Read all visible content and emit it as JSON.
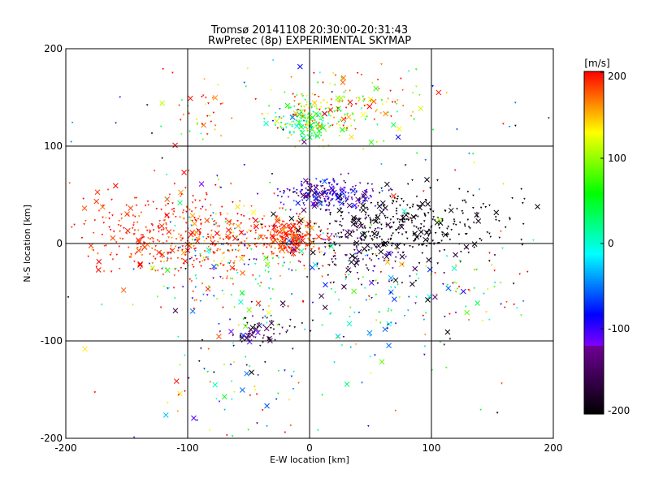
{
  "chart_data": {
    "type": "scatter",
    "title": "Tromsø 20141108 20:30:00-20:31:43",
    "subtitle": "RwPretec (8p) EXPERIMENTAL SKYMAP",
    "xlabel": "E-W location [km]",
    "ylabel": "N-S location [km]",
    "xlim": [
      -200,
      200
    ],
    "ylim": [
      -200,
      200
    ],
    "x_ticks": [
      "-200",
      "-100",
      "0",
      "100",
      "200"
    ],
    "y_ticks": [
      "200",
      "100",
      "0",
      "-100",
      "-200"
    ],
    "grid": true,
    "colorbar": {
      "label": "[m/s]",
      "range": [
        -200,
        200
      ],
      "ticks": [
        "200",
        "100",
        "0",
        "-100",
        "-200"
      ]
    },
    "clusters": [
      {
        "cx": -15,
        "cy": 5,
        "sx": 12,
        "sy": 10,
        "n": 260,
        "v": 185,
        "vs": 20
      },
      {
        "cx": -120,
        "cy": 10,
        "sx": 35,
        "sy": 22,
        "n": 300,
        "v": 190,
        "vs": 15
      },
      {
        "cx": -70,
        "cy": 0,
        "sx": 25,
        "sy": 22,
        "n": 150,
        "v": 180,
        "vs": 25
      },
      {
        "cx": 15,
        "cy": 50,
        "sx": 18,
        "sy": 8,
        "n": 240,
        "v": -110,
        "vs": 30
      },
      {
        "cx": -5,
        "cy": 125,
        "sx": 14,
        "sy": 8,
        "n": 160,
        "v": 60,
        "vs": 55
      },
      {
        "cx": 30,
        "cy": 140,
        "sx": 30,
        "sy": 16,
        "n": 160,
        "v": 140,
        "vs": 60
      },
      {
        "cx": 80,
        "cy": 18,
        "sx": 42,
        "sy": 18,
        "n": 360,
        "v": -195,
        "vs": 10
      },
      {
        "cx": 40,
        "cy": 0,
        "sx": 22,
        "sy": 18,
        "n": 150,
        "v": -160,
        "vs": 40
      },
      {
        "cx": -40,
        "cy": -90,
        "sx": 14,
        "sy": 8,
        "n": 60,
        "v": -160,
        "vs": 25
      },
      {
        "cx": -60,
        "cy": -30,
        "sx": 35,
        "sy": 35,
        "n": 170,
        "v": 0,
        "vs": 120
      },
      {
        "cx": 60,
        "cy": -60,
        "sx": 35,
        "sy": 25,
        "n": 90,
        "v": -60,
        "vs": 100
      },
      {
        "cx": -90,
        "cy": 140,
        "sx": 15,
        "sy": 20,
        "n": 40,
        "v": 150,
        "vs": 50
      },
      {
        "cx": -60,
        "cy": -150,
        "sx": 35,
        "sy": 25,
        "n": 55,
        "v": 40,
        "vs": 110
      },
      {
        "cx": 130,
        "cy": -40,
        "sx": 30,
        "sy": 25,
        "n": 45,
        "v": 100,
        "vs": 120
      },
      {
        "cx": 0,
        "cy": 0,
        "sx": 110,
        "sy": 110,
        "n": 160,
        "v": 0,
        "vs": 150
      }
    ]
  }
}
